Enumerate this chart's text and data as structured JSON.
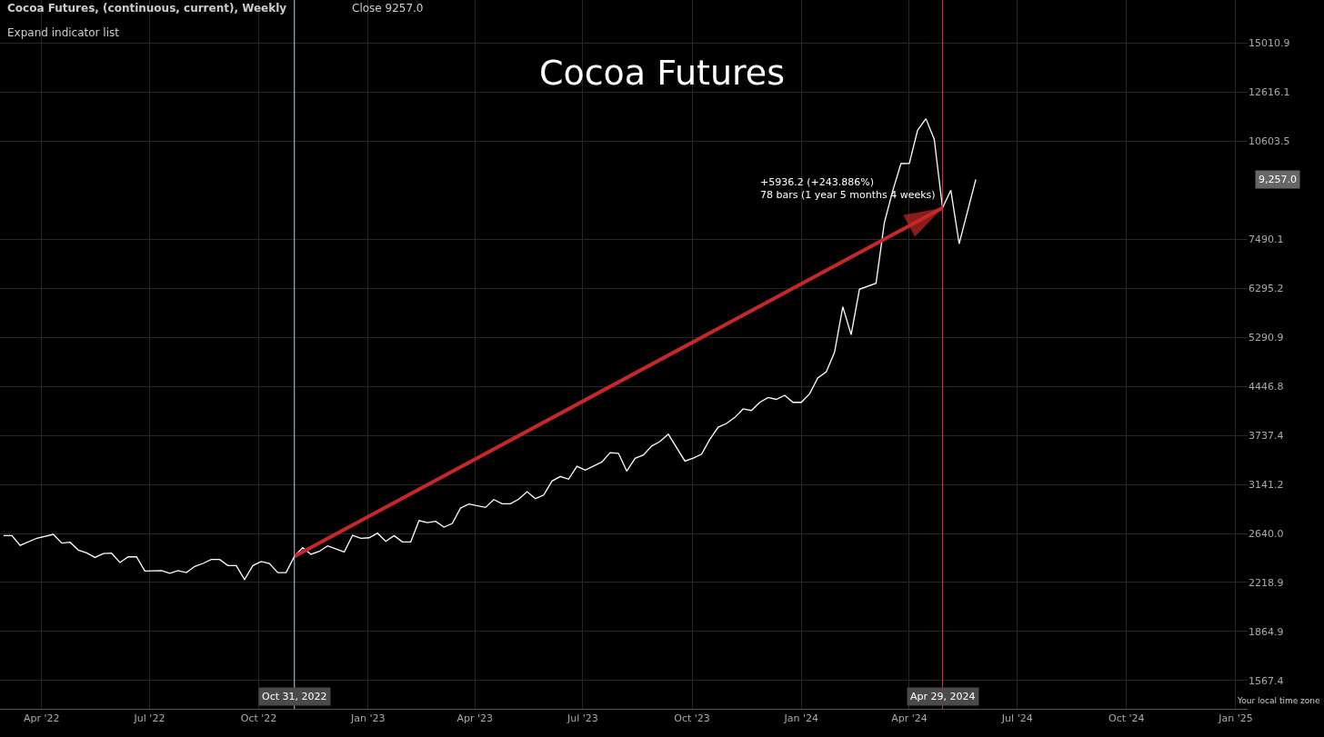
{
  "chart_data": {
    "type": "line",
    "title": "Cocoa Futures",
    "subtitle": "Cocoa Futures, (continuous, current), Weekly",
    "log": true,
    "grid": true,
    "xlim": [
      "2022-02-25",
      "2025-01-11"
    ],
    "xticks": [
      {
        "value": "2022-04-01",
        "label": "Apr '22"
      },
      {
        "value": "2022-07-01",
        "label": "Jul '22"
      },
      {
        "value": "2022-10-01",
        "label": "Oct '22"
      },
      {
        "value": "2023-01-01",
        "label": "Jan '23"
      },
      {
        "value": "2023-04-01",
        "label": "Apr '23"
      },
      {
        "value": "2023-07-01",
        "label": "Jul '23"
      },
      {
        "value": "2023-10-01",
        "label": "Oct '23"
      },
      {
        "value": "2024-01-01",
        "label": "Jan '24"
      },
      {
        "value": "2024-04-01",
        "label": "Apr '24"
      },
      {
        "value": "2024-07-01",
        "label": "Jul '24"
      },
      {
        "value": "2024-10-01",
        "label": "Oct '24"
      },
      {
        "value": "2025-01-01",
        "label": "Jan '25"
      }
    ],
    "ylim": [
      1418,
      17488
    ],
    "yticks": [
      {
        "value": 1567.4,
        "label": "1567.4"
      },
      {
        "value": 1864.9,
        "label": "1864.9"
      },
      {
        "value": 2218.9,
        "label": "2218.9"
      },
      {
        "value": 2640.0,
        "label": "2640.0"
      },
      {
        "value": 3141.2,
        "label": "3141.2"
      },
      {
        "value": 3737.4,
        "label": "3737.4"
      },
      {
        "value": 4446.8,
        "label": "4446.8"
      },
      {
        "value": 5290.9,
        "label": "5290.9"
      },
      {
        "value": 6295.2,
        "label": "6295.2"
      },
      {
        "value": 7490.1,
        "label": "7490.1"
      },
      {
        "value": 10603.5,
        "label": "10603.5"
      },
      {
        "value": 12616.1,
        "label": "12616.1"
      },
      {
        "value": 15010.9,
        "label": "15010.9"
      }
    ],
    "series": [
      {
        "color": "#ffffff",
        "x": [
          "2022-02-28",
          "2022-03-07",
          "2022-03-14",
          "2022-03-28",
          "2022-04-11",
          "2022-04-18",
          "2022-04-25",
          "2022-05-02",
          "2022-05-09",
          "2022-05-16",
          "2022-05-23",
          "2022-05-30",
          "2022-06-06",
          "2022-06-13",
          "2022-06-20",
          "2022-06-27",
          "2022-07-11",
          "2022-07-18",
          "2022-07-25",
          "2022-08-01",
          "2022-08-08",
          "2022-08-15",
          "2022-08-22",
          "2022-08-29",
          "2022-09-05",
          "2022-09-12",
          "2022-09-19",
          "2022-09-26",
          "2022-10-03",
          "2022-10-10",
          "2022-10-17",
          "2022-10-24",
          "2022-10-31",
          "2022-11-07",
          "2022-11-14",
          "2022-11-21",
          "2022-11-28",
          "2022-12-12",
          "2022-12-19",
          "2022-12-26",
          "2023-01-02",
          "2023-01-09",
          "2023-01-16",
          "2023-01-23",
          "2023-01-30",
          "2023-02-06",
          "2023-02-13",
          "2023-02-20",
          "2023-02-27",
          "2023-03-06",
          "2023-03-13",
          "2023-03-20",
          "2023-03-27",
          "2023-04-10",
          "2023-04-17",
          "2023-04-24",
          "2023-05-01",
          "2023-05-08",
          "2023-05-15",
          "2023-05-22",
          "2023-05-29",
          "2023-06-05",
          "2023-06-12",
          "2023-06-19",
          "2023-06-26",
          "2023-07-03",
          "2023-07-17",
          "2023-07-24",
          "2023-07-31",
          "2023-08-07",
          "2023-08-14",
          "2023-08-21",
          "2023-08-28",
          "2023-09-04",
          "2023-09-11",
          "2023-09-25",
          "2023-10-02",
          "2023-10-09",
          "2023-10-16",
          "2023-10-23",
          "2023-10-30",
          "2023-11-06",
          "2023-11-13",
          "2023-11-20",
          "2023-11-27",
          "2023-12-04",
          "2023-12-11",
          "2023-12-18",
          "2023-12-25",
          "2024-01-01",
          "2024-01-08",
          "2024-01-15",
          "2024-01-22",
          "2024-01-29",
          "2024-02-05",
          "2024-02-12",
          "2024-02-19",
          "2024-03-04",
          "2024-03-11",
          "2024-03-18",
          "2024-03-25",
          "2024-04-01",
          "2024-04-08",
          "2024-04-15",
          "2024-04-22",
          "2024-04-29",
          "2024-05-06",
          "2024-05-13",
          "2024-05-27"
        ],
        "values": [
          2620,
          2620,
          2531,
          2596,
          2631,
          2551,
          2559,
          2489,
          2465,
          2425,
          2459,
          2462,
          2382,
          2430,
          2430,
          2311,
          2315,
          2293,
          2315,
          2298,
          2349,
          2374,
          2407,
          2407,
          2356,
          2356,
          2242,
          2356,
          2390,
          2374,
          2298,
          2298,
          2434.0,
          2510,
          2452,
          2478,
          2526,
          2473,
          2623,
          2595,
          2600,
          2643,
          2567,
          2620,
          2562,
          2562,
          2764,
          2744,
          2756,
          2700,
          2735,
          2889,
          2930,
          2895,
          2977,
          2933,
          2933,
          2981,
          3062,
          2987,
          3025,
          3179,
          3231,
          3200,
          3350,
          3304,
          3401,
          3516,
          3508,
          3293,
          3445,
          3486,
          3599,
          3658,
          3753,
          3412,
          3449,
          3497,
          3686,
          3848,
          3898,
          3983,
          4105,
          4082,
          4202,
          4275,
          4246,
          4308,
          4202,
          4202,
          4331,
          4583,
          4679,
          5016,
          5894,
          5340,
          6274,
          6408,
          7944,
          8890,
          9794,
          9800,
          11023,
          11482,
          10676,
          8370.2,
          8911,
          7371,
          9257
        ]
      },
      {
        "color": "#c62828",
        "x": [
          "2022-10-31",
          "2024-04-29"
        ],
        "values": [
          2434.0,
          8370.2
        ]
      }
    ],
    "ref_lines": [
      {
        "axis": "x",
        "value": "2022-10-31",
        "label": "Oct 31, 2022",
        "color": "#a8d4f5"
      },
      {
        "axis": "x",
        "value": "2024-04-29",
        "label": "Apr 29, 2024",
        "color": "#d32f2f"
      }
    ],
    "annotations": [
      {
        "text": "+5936.2 (+243.886%)\n78 bars (1 year 5 months 4 weeks)",
        "x": "2024-04-29",
        "y": 8370.2
      },
      "9,257.0",
      "Close 9257.0",
      "Expand indicator list",
      "Your local time zone"
    ]
  }
}
